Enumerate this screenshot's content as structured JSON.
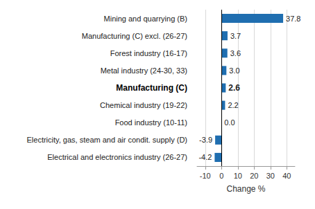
{
  "chart_data": {
    "type": "bar",
    "orientation": "horizontal",
    "categories": [
      "Mining and quarrying (B)",
      "Manufacturing (C) excl. (26-27)",
      "Forest industry (16-17)",
      "Metal industry (24-30, 33)",
      "Manufacturing (C)",
      "Chemical industry (19-22)",
      "Food industry (10-11)",
      "Electricity, gas, steam and air condit. supply (D)",
      "Electrical and electronics industry (26-27)"
    ],
    "values": [
      37.8,
      3.7,
      3.6,
      3.0,
      2.6,
      2.2,
      0.0,
      -3.9,
      -4.2
    ],
    "value_labels": [
      "37.8",
      "3.7",
      "3.6",
      "3.0",
      "2.6",
      "2.2",
      "0.0",
      "-3.9",
      "-4.2"
    ],
    "color": "#1f6eb0",
    "xlabel": "Change %",
    "xlim": [
      -15,
      45
    ],
    "xticks": [
      -10,
      0,
      10,
      20,
      30,
      40
    ],
    "grid": true,
    "data_labels": true
  }
}
